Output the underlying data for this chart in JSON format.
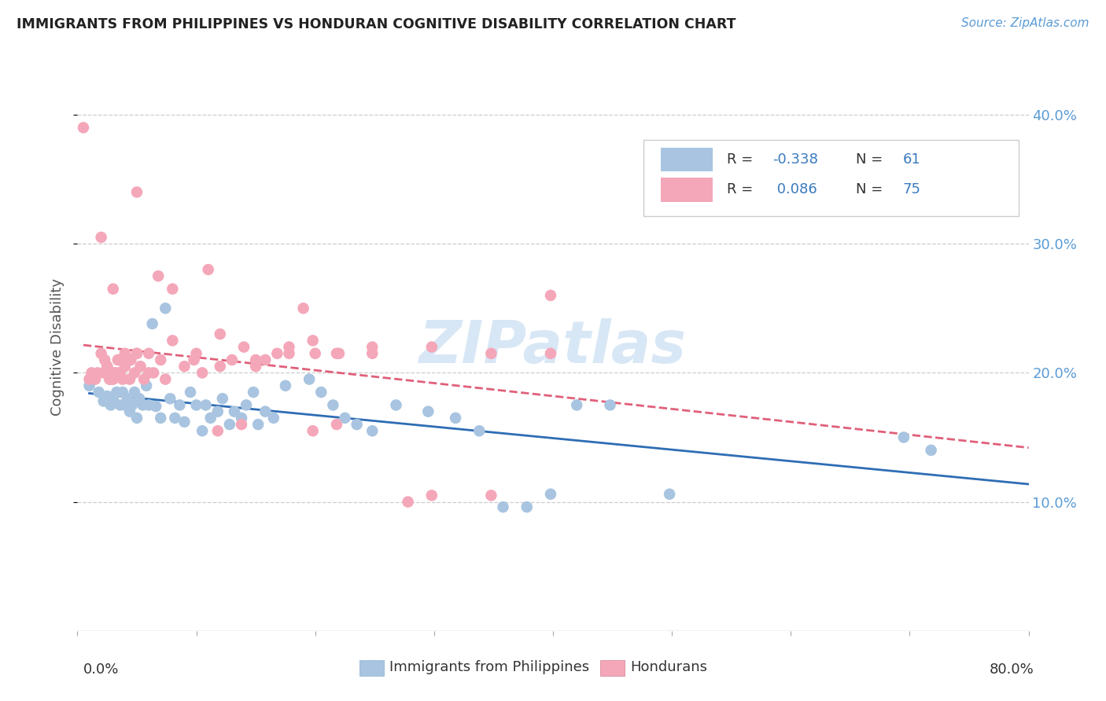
{
  "title": "IMMIGRANTS FROM PHILIPPINES VS HONDURAN COGNITIVE DISABILITY CORRELATION CHART",
  "source": "Source: ZipAtlas.com",
  "ylabel": "Cognitive Disability",
  "xlim": [
    0.0,
    0.8
  ],
  "ylim": [
    0.0,
    0.44
  ],
  "blue_R": -0.338,
  "blue_N": 61,
  "pink_R": 0.086,
  "pink_N": 75,
  "blue_color": "#a8c4e0",
  "pink_color": "#f4a7b9",
  "blue_line_color": "#2e6db4",
  "pink_line_color": "#e0607a",
  "watermark": "ZIPatlas",
  "legend_label_blue": "Immigrants from Philippines",
  "legend_label_pink": "Hondurans",
  "blue_scatter_x": [
    0.01,
    0.018,
    0.022,
    0.025,
    0.028,
    0.03,
    0.033,
    0.036,
    0.038,
    0.04,
    0.042,
    0.044,
    0.046,
    0.048,
    0.05,
    0.052,
    0.055,
    0.058,
    0.06,
    0.063,
    0.066,
    0.07,
    0.074,
    0.078,
    0.082,
    0.086,
    0.09,
    0.095,
    0.1,
    0.105,
    0.108,
    0.112,
    0.118,
    0.122,
    0.128,
    0.132,
    0.138,
    0.142,
    0.148,
    0.152,
    0.158,
    0.165,
    0.175,
    0.195,
    0.205,
    0.215,
    0.225,
    0.235,
    0.248,
    0.268,
    0.295,
    0.318,
    0.338,
    0.358,
    0.378,
    0.398,
    0.42,
    0.448,
    0.498,
    0.695,
    0.718
  ],
  "blue_scatter_y": [
    0.19,
    0.185,
    0.178,
    0.182,
    0.175,
    0.18,
    0.185,
    0.175,
    0.185,
    0.175,
    0.18,
    0.17,
    0.175,
    0.185,
    0.165,
    0.18,
    0.175,
    0.19,
    0.175,
    0.238,
    0.174,
    0.165,
    0.25,
    0.18,
    0.165,
    0.175,
    0.162,
    0.185,
    0.175,
    0.155,
    0.175,
    0.165,
    0.17,
    0.18,
    0.16,
    0.17,
    0.165,
    0.175,
    0.185,
    0.16,
    0.17,
    0.165,
    0.19,
    0.195,
    0.185,
    0.175,
    0.165,
    0.16,
    0.155,
    0.175,
    0.17,
    0.165,
    0.155,
    0.096,
    0.096,
    0.106,
    0.175,
    0.175,
    0.106,
    0.15,
    0.14
  ],
  "pink_scatter_x": [
    0.005,
    0.01,
    0.012,
    0.015,
    0.017,
    0.02,
    0.022,
    0.023,
    0.025,
    0.027,
    0.028,
    0.03,
    0.032,
    0.034,
    0.036,
    0.038,
    0.04,
    0.045,
    0.048,
    0.05,
    0.053,
    0.056,
    0.06,
    0.064,
    0.068,
    0.074,
    0.08,
    0.09,
    0.098,
    0.105,
    0.11,
    0.12,
    0.13,
    0.14,
    0.15,
    0.158,
    0.168,
    0.178,
    0.19,
    0.2,
    0.22,
    0.248,
    0.278,
    0.298,
    0.348,
    0.398,
    0.118,
    0.138,
    0.198,
    0.218,
    0.025,
    0.03,
    0.035,
    0.04,
    0.044,
    0.05,
    0.06,
    0.07,
    0.08,
    0.1,
    0.12,
    0.15,
    0.178,
    0.198,
    0.218,
    0.248,
    0.298,
    0.348,
    0.398,
    0.02,
    0.025,
    0.03,
    0.035,
    0.04,
    0.05
  ],
  "pink_scatter_y": [
    0.39,
    0.195,
    0.2,
    0.195,
    0.2,
    0.215,
    0.2,
    0.21,
    0.205,
    0.195,
    0.195,
    0.265,
    0.2,
    0.21,
    0.2,
    0.195,
    0.215,
    0.21,
    0.2,
    0.215,
    0.205,
    0.195,
    0.215,
    0.2,
    0.275,
    0.195,
    0.265,
    0.205,
    0.21,
    0.2,
    0.28,
    0.23,
    0.21,
    0.22,
    0.205,
    0.21,
    0.215,
    0.22,
    0.25,
    0.215,
    0.215,
    0.215,
    0.1,
    0.105,
    0.105,
    0.26,
    0.155,
    0.16,
    0.155,
    0.16,
    0.2,
    0.195,
    0.2,
    0.21,
    0.195,
    0.215,
    0.2,
    0.21,
    0.225,
    0.215,
    0.205,
    0.21,
    0.215,
    0.225,
    0.215,
    0.22,
    0.22,
    0.215,
    0.215,
    0.305,
    0.205,
    0.2,
    0.21,
    0.205,
    0.34
  ]
}
